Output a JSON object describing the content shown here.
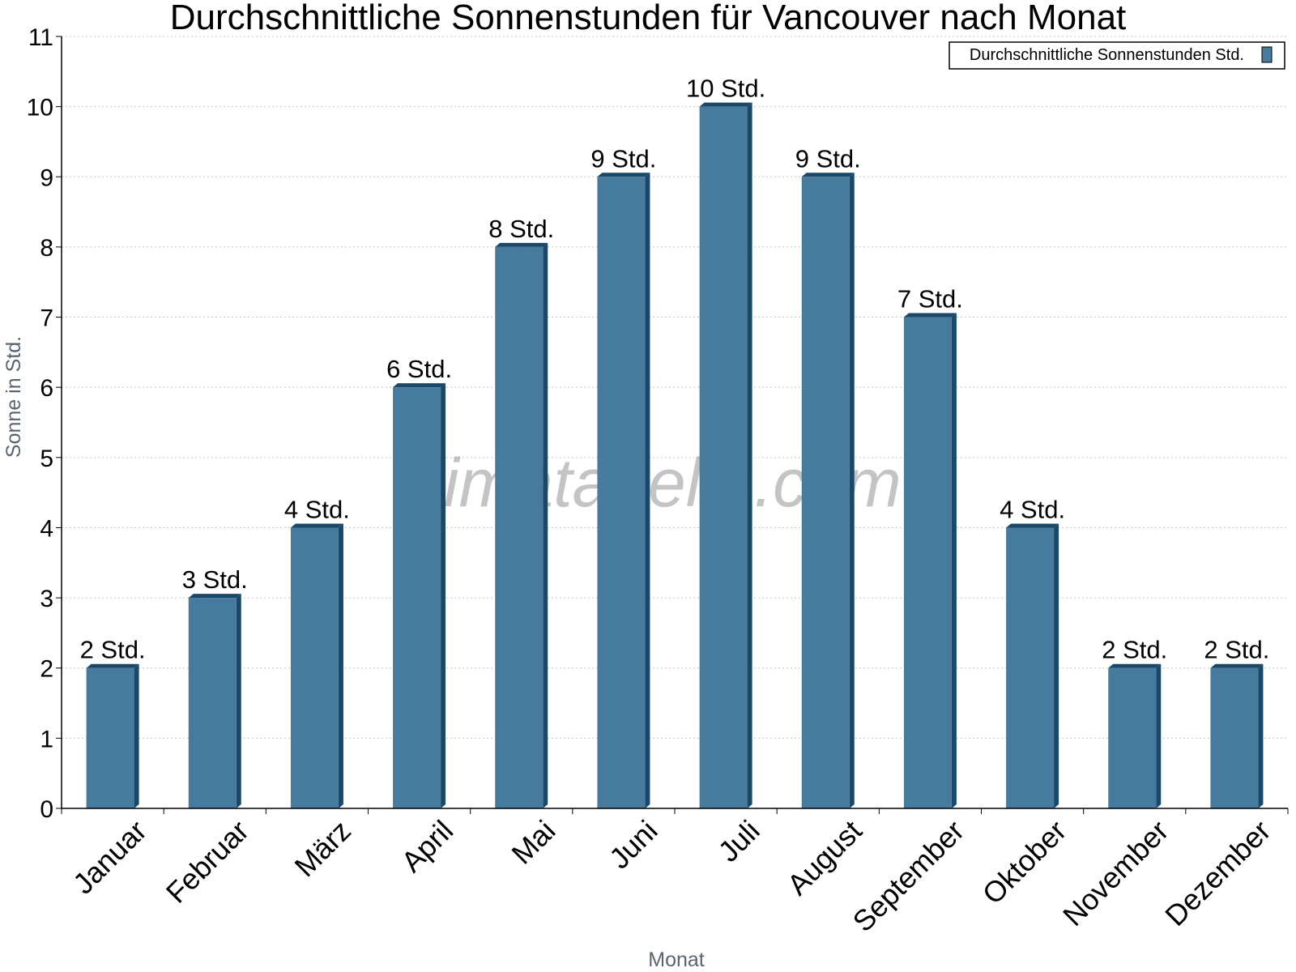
{
  "chart_data": {
    "type": "bar",
    "title": "Durchschnittliche Sonnenstunden für Vancouver nach Monat",
    "xlabel": "Monat",
    "ylabel": "Sonne in Std.",
    "categories": [
      "Januar",
      "Februar",
      "März",
      "April",
      "Mai",
      "Juni",
      "Juli",
      "August",
      "September",
      "Oktober",
      "November",
      "Dezember"
    ],
    "series": [
      {
        "name": "Durchschnittliche Sonnenstunden Std.",
        "values": [
          2,
          3,
          4,
          6,
          8,
          9,
          10,
          9,
          7,
          4,
          2,
          2
        ],
        "labels": [
          "2 Std.",
          "3 Std.",
          "4 Std.",
          "6 Std.",
          "8 Std.",
          "9 Std.",
          "10 Std.",
          "9 Std.",
          "7 Std.",
          "4 Std.",
          "2 Std.",
          "2 Std."
        ],
        "color": "#477b9e",
        "side_color": "#1c4868"
      }
    ],
    "ylim": [
      0,
      11
    ],
    "yticks": [
      "0",
      "1",
      "2",
      "3",
      "4",
      "5",
      "6",
      "7",
      "8",
      "9",
      "10",
      "11"
    ],
    "grid": true,
    "legend_position": "top-right",
    "watermark": "klimatabelle.com"
  }
}
